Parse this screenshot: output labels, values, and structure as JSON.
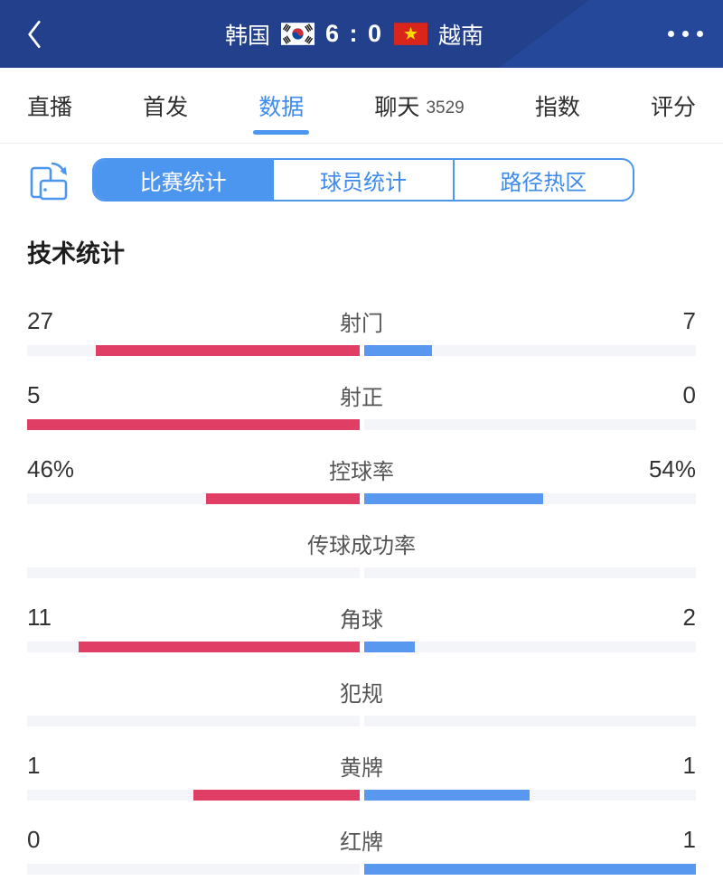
{
  "header": {
    "home_team": "韩国",
    "score": "6 : 0",
    "away_team": "越南"
  },
  "tabs": [
    {
      "label": "直播",
      "active": false
    },
    {
      "label": "首发",
      "active": false
    },
    {
      "label": "数据",
      "active": true
    },
    {
      "label": "聊天",
      "active": false,
      "badge": "3529"
    },
    {
      "label": "指数",
      "active": false
    },
    {
      "label": "评分",
      "active": false
    }
  ],
  "subtabs": [
    {
      "label": "比赛统计",
      "active": true
    },
    {
      "label": "球员统计",
      "active": false
    },
    {
      "label": "路径热区",
      "active": false
    }
  ],
  "section_title": "技术统计",
  "colors": {
    "header_bg": "#26489B",
    "accent_blue": "#4D96F0",
    "home_bar": "#E13E66",
    "away_bar": "#5898EE",
    "track": "#F3F5F8"
  },
  "chart_data": {
    "type": "bar",
    "title": "技术统计",
    "legend": {
      "home": "韩国",
      "away": "越南"
    },
    "layout": "center-out horizontal duel bars, home left (pink), away right (blue)",
    "rows": [
      {
        "label": "射门",
        "home": "27",
        "away": "7",
        "home_pct": 79.4,
        "away_pct": 20.6
      },
      {
        "label": "射正",
        "home": "5",
        "away": "0",
        "home_pct": 100,
        "away_pct": 0
      },
      {
        "label": "控球率",
        "home": "46%",
        "away": "54%",
        "home_pct": 46,
        "away_pct": 54
      },
      {
        "label": "传球成功率",
        "home": "",
        "away": "",
        "home_pct": 0,
        "away_pct": 0
      },
      {
        "label": "角球",
        "home": "11",
        "away": "2",
        "home_pct": 84.6,
        "away_pct": 15.4
      },
      {
        "label": "犯规",
        "home": "",
        "away": "",
        "home_pct": 0,
        "away_pct": 0
      },
      {
        "label": "黄牌",
        "home": "1",
        "away": "1",
        "home_pct": 50,
        "away_pct": 50
      },
      {
        "label": "红牌",
        "home": "0",
        "away": "1",
        "home_pct": 0,
        "away_pct": 100
      }
    ]
  }
}
